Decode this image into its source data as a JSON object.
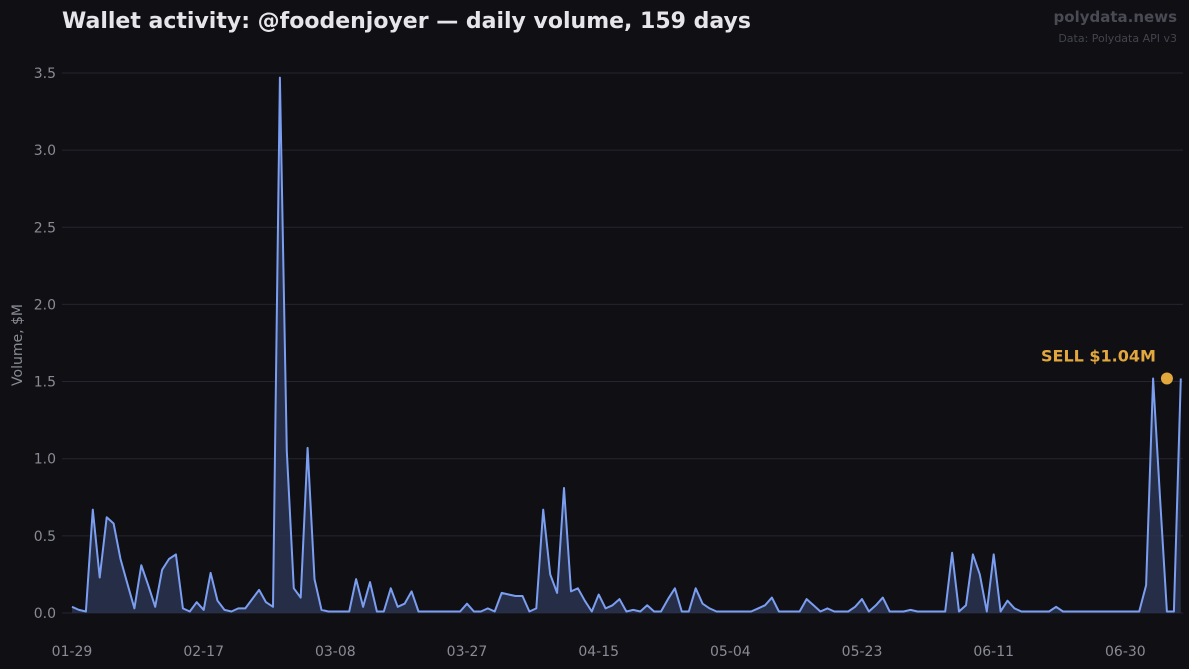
{
  "header": {
    "title": "Wallet activity: @foodenjoyer — daily volume, 159 days",
    "brand": "polydata.news",
    "source": "Data: Polydata API v3"
  },
  "colors": {
    "background": "#0f0f14",
    "line": "#7b9ef0",
    "fill": "#2a3450",
    "grid": "#262630",
    "annotation": "#e3a83d"
  },
  "chart_data": {
    "type": "area",
    "title": "Wallet activity: @foodenjoyer — daily volume, 159 days",
    "xlabel": "",
    "ylabel": "Volume, $M",
    "ylim": [
      0,
      3.6
    ],
    "grid": true,
    "x_start": "01-29",
    "x_ticks": [
      "01-29",
      "02-17",
      "03-08",
      "03-27",
      "04-15",
      "05-04",
      "05-23",
      "06-11",
      "06-30"
    ],
    "y_ticks": [
      0.0,
      0.5,
      1.0,
      1.5,
      2.0,
      2.5,
      3.0,
      3.5
    ],
    "y_tick_labels": [
      "0.0",
      "0.5",
      "1.0",
      "1.5",
      "2.0",
      "2.5",
      "3.0",
      "3.5"
    ],
    "series": [
      {
        "values": [
          0.04,
          0.02,
          0.01,
          0.67,
          0.23,
          0.62,
          0.58,
          0.35,
          0.19,
          0.03,
          0.31,
          0.18,
          0.04,
          0.28,
          0.35,
          0.38,
          0.03,
          0.01,
          0.07,
          0.02,
          0.26,
          0.08,
          0.02,
          0.01,
          0.03,
          0.03,
          0.09,
          0.15,
          0.07,
          0.04,
          3.47,
          1.05,
          0.16,
          0.1,
          1.07,
          0.22,
          0.02,
          0.01,
          0.01,
          0.01,
          0.01,
          0.22,
          0.04,
          0.2,
          0.01,
          0.01,
          0.16,
          0.04,
          0.06,
          0.14,
          0.01,
          0.01,
          0.01,
          0.01,
          0.01,
          0.01,
          0.01,
          0.06,
          0.01,
          0.01,
          0.03,
          0.01,
          0.13,
          0.12,
          0.11,
          0.11,
          0.01,
          0.03,
          0.67,
          0.25,
          0.13,
          0.81,
          0.14,
          0.16,
          0.08,
          0.01,
          0.12,
          0.03,
          0.05,
          0.09,
          0.01,
          0.02,
          0.01,
          0.05,
          0.01,
          0.01,
          0.09,
          0.16,
          0.01,
          0.01,
          0.16,
          0.06,
          0.03,
          0.01,
          0.01,
          0.01,
          0.01,
          0.01,
          0.01,
          0.03,
          0.05,
          0.1,
          0.01,
          0.01,
          0.01,
          0.01,
          0.09,
          0.05,
          0.01,
          0.03,
          0.01,
          0.01,
          0.01,
          0.04,
          0.09,
          0.01,
          0.05,
          0.1,
          0.01,
          0.01,
          0.01,
          0.02,
          0.01,
          0.01,
          0.01,
          0.01,
          0.01,
          0.39,
          0.01,
          0.05,
          0.38,
          0.25,
          0.01,
          0.38,
          0.01,
          0.08,
          0.03,
          0.01,
          0.01,
          0.01,
          0.01,
          0.01,
          0.04,
          0.01,
          0.01,
          0.01,
          0.01,
          0.01,
          0.01,
          0.01,
          0.01,
          0.01,
          0.01,
          0.01,
          0.01,
          0.18,
          1.52,
          0.75,
          0.01,
          0.01,
          1.52
        ]
      }
    ],
    "annotations": [
      {
        "text": "SELL $1.04M",
        "x_index": 158,
        "y": 1.52
      }
    ]
  }
}
